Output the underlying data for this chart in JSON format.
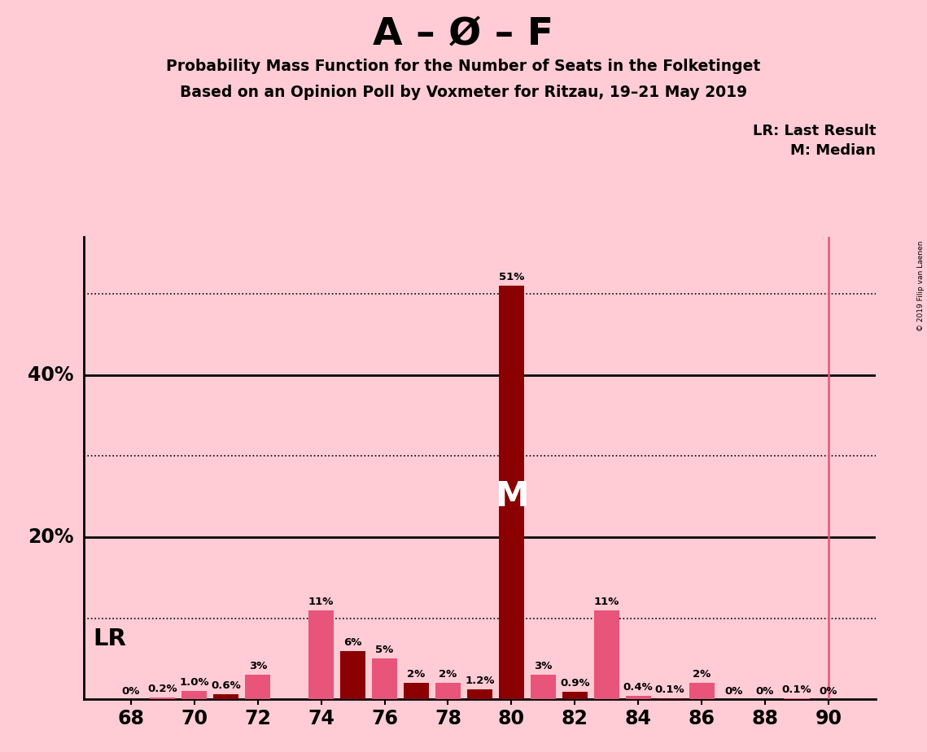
{
  "title_main": "A – Ø – F",
  "title_sub1": "Probability Mass Function for the Number of Seats in the Folketinget",
  "title_sub2": "Based on an Opinion Poll by Voxmeter for Ritzau, 19–21 May 2019",
  "background_color": "#FFCCD5",
  "bars": [
    {
      "seat": 68,
      "value": 0.0,
      "color": "pink",
      "label": "0%"
    },
    {
      "seat": 69,
      "value": 0.2,
      "color": "pink",
      "label": "0.2%"
    },
    {
      "seat": 70,
      "value": 1.0,
      "color": "pink",
      "label": "1.0%"
    },
    {
      "seat": 71,
      "value": 0.6,
      "color": "dark",
      "label": "0.6%"
    },
    {
      "seat": 72,
      "value": 3.0,
      "color": "pink",
      "label": "3%"
    },
    {
      "seat": 73,
      "value": 0.0,
      "color": "dark",
      "label": ""
    },
    {
      "seat": 74,
      "value": 11.0,
      "color": "pink",
      "label": "11%"
    },
    {
      "seat": 75,
      "value": 6.0,
      "color": "dark",
      "label": "6%"
    },
    {
      "seat": 76,
      "value": 5.0,
      "color": "pink",
      "label": "5%"
    },
    {
      "seat": 77,
      "value": 2.0,
      "color": "dark",
      "label": "2%"
    },
    {
      "seat": 78,
      "value": 2.0,
      "color": "pink",
      "label": "2%"
    },
    {
      "seat": 79,
      "value": 1.2,
      "color": "dark",
      "label": "1.2%"
    },
    {
      "seat": 80,
      "value": 51.0,
      "color": "dark",
      "label": "51%"
    },
    {
      "seat": 81,
      "value": 3.0,
      "color": "pink",
      "label": "3%"
    },
    {
      "seat": 82,
      "value": 0.9,
      "color": "dark",
      "label": "0.9%"
    },
    {
      "seat": 83,
      "value": 11.0,
      "color": "pink",
      "label": "11%"
    },
    {
      "seat": 84,
      "value": 0.4,
      "color": "pink",
      "label": "0.4%"
    },
    {
      "seat": 85,
      "value": 0.1,
      "color": "dark",
      "label": "0.1%"
    },
    {
      "seat": 86,
      "value": 2.0,
      "color": "pink",
      "label": "2%"
    },
    {
      "seat": 87,
      "value": 0.0,
      "color": "dark",
      "label": "0%"
    },
    {
      "seat": 88,
      "value": 0.0,
      "color": "pink",
      "label": "0%"
    },
    {
      "seat": 89,
      "value": 0.1,
      "color": "pink",
      "label": "0.1%"
    },
    {
      "seat": 90,
      "value": 0.0,
      "color": "dark",
      "label": "0%"
    }
  ],
  "bar_color_dark": "#8B0000",
  "bar_color_pink": "#E8547A",
  "median_seat": 80,
  "lr_line_seat": 90,
  "xtick_seats": [
    68,
    70,
    72,
    74,
    76,
    78,
    80,
    82,
    84,
    86,
    88,
    90
  ],
  "watermark": "© 2019 Filip van Laenen",
  "legend_lr": "LR: Last Result",
  "legend_m": "M: Median",
  "lr_label": "LR",
  "m_label": "M",
  "yticks_dotted": [
    10,
    30,
    50
  ],
  "yticks_solid": [
    20,
    40
  ],
  "ymax": 57,
  "xlim_min": 66.5,
  "xlim_max": 91.5,
  "bar_width": 0.8
}
